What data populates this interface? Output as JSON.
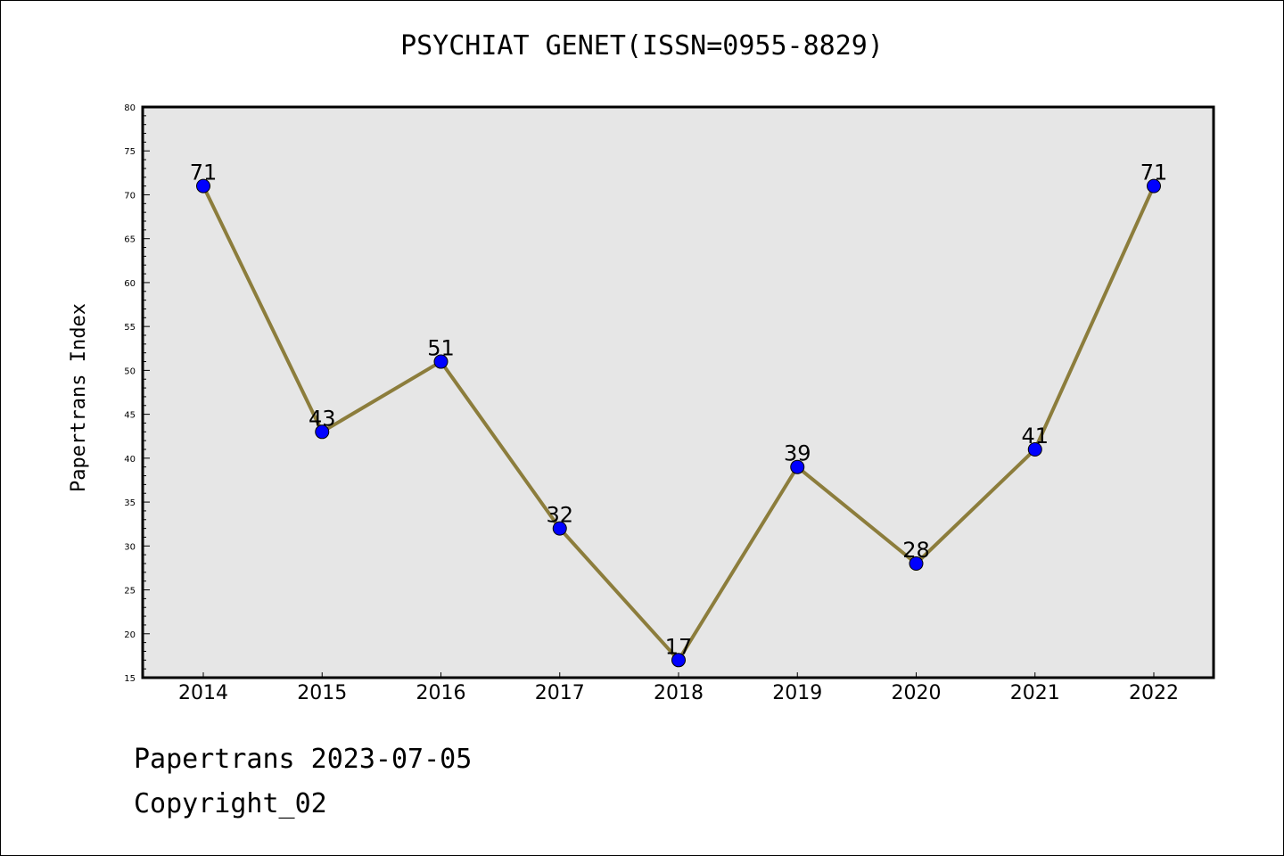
{
  "chart_data": {
    "type": "line",
    "title": "PSYCHIAT GENET(ISSN=0955-8829)",
    "ylabel": "Papertrans Index",
    "xlabel": "",
    "categories": [
      "2014",
      "2015",
      "2016",
      "2017",
      "2018",
      "2019",
      "2020",
      "2021",
      "2022"
    ],
    "series": [
      {
        "values": [
          71,
          43,
          51,
          32,
          17,
          39,
          28,
          41,
          71
        ]
      }
    ],
    "ylim": [
      15,
      80
    ],
    "yticks": [
      15,
      20,
      25,
      30,
      35,
      40,
      45,
      50,
      55,
      60,
      65,
      70,
      75,
      80
    ],
    "data_labels": true,
    "grid": false,
    "colors": {
      "plot_background": "#e6e6e6",
      "line": "#8c7d3c",
      "marker": "#0000ff"
    }
  },
  "footer": {
    "line1": "Papertrans 2023-07-05",
    "line2": "Copyright_02"
  }
}
